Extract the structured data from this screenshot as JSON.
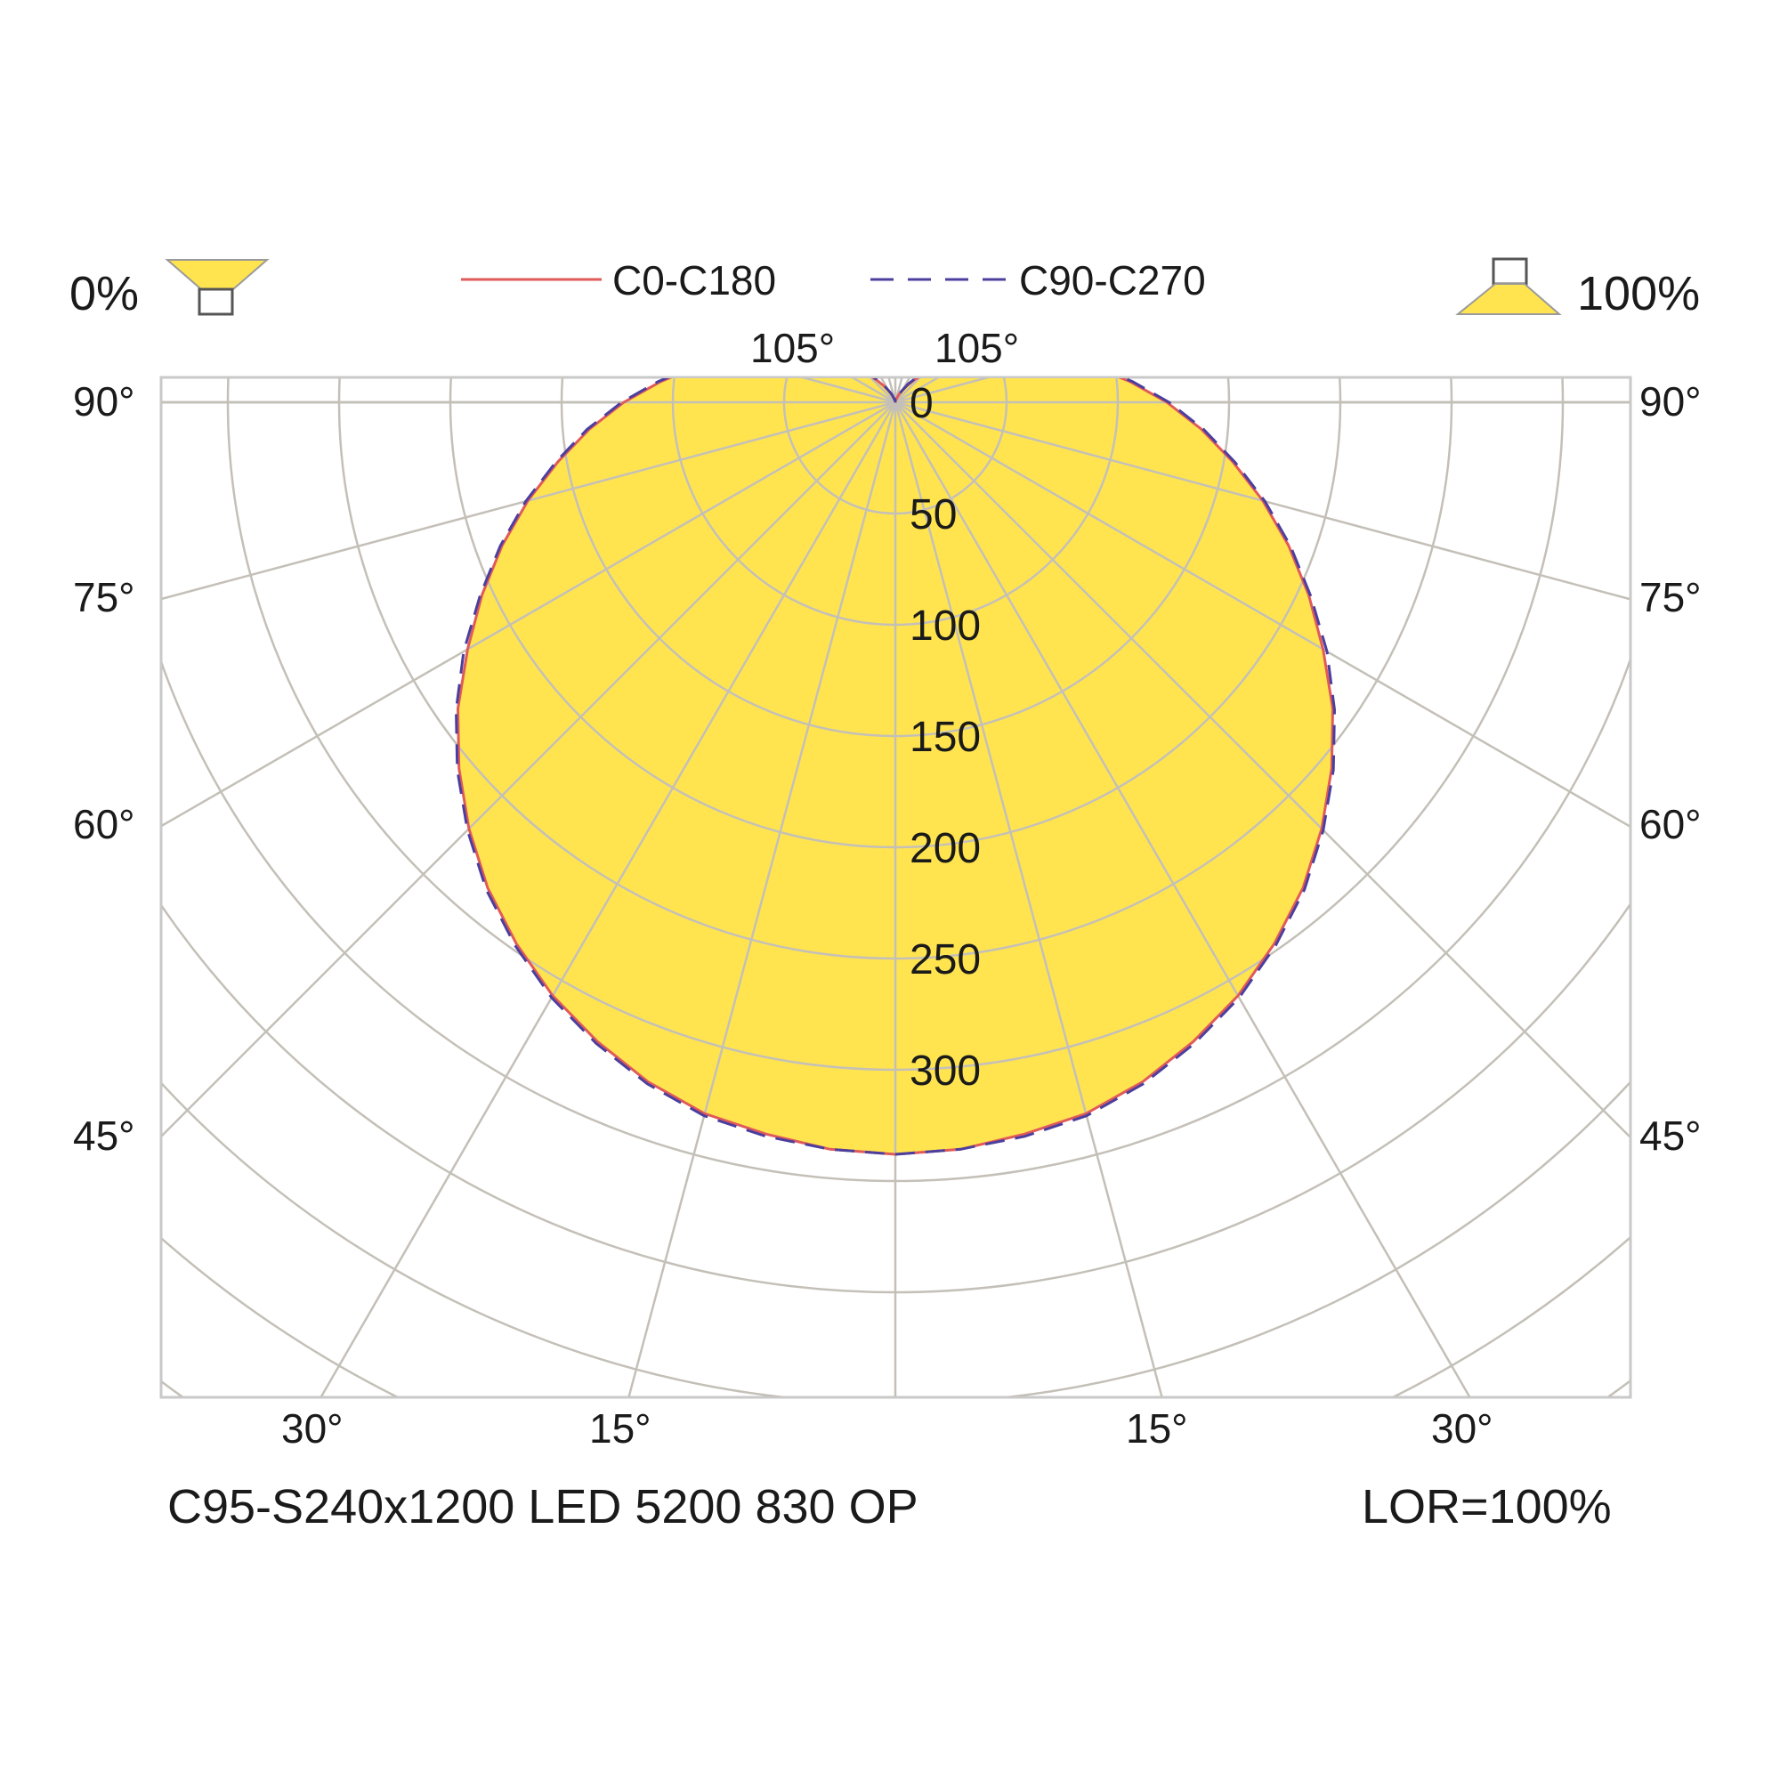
{
  "header": {
    "downward_label": "0%",
    "upward_label": "100%",
    "downward_icon": "downlight-luminaire-icon",
    "upward_icon": "uplight-luminaire-icon"
  },
  "footer": {
    "product_name": "C95-S240x1200 LED 5200 830 OP",
    "lor": "LOR=100%"
  },
  "colors": {
    "fill": "#FFE44F",
    "c0_line": "#E05A5A",
    "c90_line": "#4B3F9E",
    "grid": "#C4C0B8",
    "frame": "#C9C9C9"
  },
  "chart_data": {
    "type": "polar",
    "unit_note": "",
    "radial_ticks": [
      0,
      50,
      100,
      150,
      200,
      250,
      300
    ],
    "radial_tick_labels": [
      "0",
      "50",
      "100",
      "150",
      "200",
      "250",
      "300"
    ],
    "rlim": [
      0,
      350
    ],
    "angle_labels_left": [
      "90°",
      "75°",
      "60°",
      "45°"
    ],
    "angle_labels_right": [
      "90°",
      "75°",
      "60°",
      "45°"
    ],
    "angle_labels_bottom": [
      "30°",
      "15°",
      "15°",
      "30°"
    ],
    "angle_labels_top": [
      "105°",
      "105°"
    ],
    "grid": true,
    "legend_position": "top-center",
    "series": [
      {
        "name": "C0-C180",
        "style": "solid",
        "angles": [
          0,
          5,
          10,
          15,
          20,
          25,
          30,
          35,
          40,
          45,
          50,
          55,
          60,
          65,
          70,
          75,
          80,
          85,
          90,
          95,
          100,
          105,
          110,
          115,
          120,
          125,
          130,
          135,
          140,
          145,
          150,
          155,
          160,
          165,
          170,
          175,
          180
        ],
        "values": [
          338,
          337,
          334,
          331,
          325,
          317,
          308,
          297,
          285,
          271,
          256,
          240,
          222,
          205,
          188,
          171,
          154,
          138,
          122,
          106,
          91,
          77,
          64,
          52,
          42,
          33,
          25,
          18,
          13,
          9,
          6,
          4,
          2,
          1,
          1,
          0,
          0
        ]
      },
      {
        "name": "C90-C270",
        "style": "dashed",
        "angles": [
          0,
          5,
          10,
          15,
          20,
          25,
          30,
          35,
          40,
          45,
          50,
          55,
          60,
          65,
          70,
          75,
          80,
          85,
          90,
          95,
          100,
          105,
          110,
          115,
          120,
          125,
          130,
          135,
          140,
          145,
          150,
          155,
          160,
          165,
          170,
          175,
          180
        ],
        "values": [
          338,
          337,
          335,
          332,
          326,
          318,
          309,
          298,
          286,
          272,
          257,
          241,
          224,
          206,
          189,
          172,
          155,
          139,
          123,
          107,
          92,
          78,
          65,
          53,
          43,
          34,
          26,
          19,
          14,
          10,
          6,
          4,
          2,
          1,
          1,
          0,
          0
        ]
      }
    ]
  }
}
